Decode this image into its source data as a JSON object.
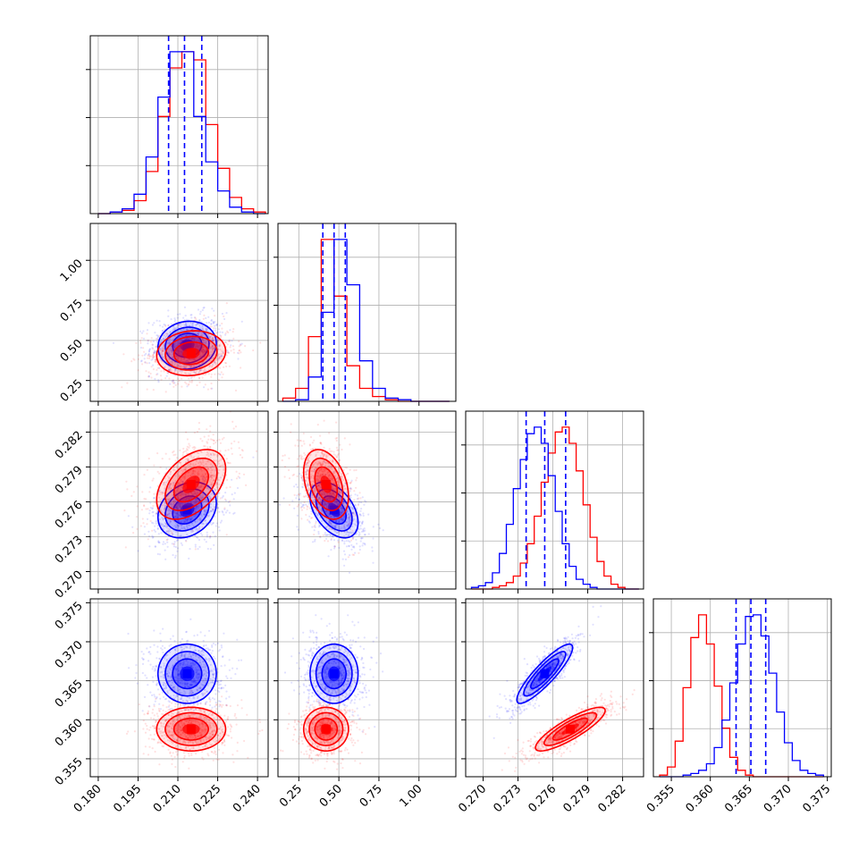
{
  "chart_data": {
    "type": "corner",
    "colors": {
      "series_a": "#0000ff",
      "series_b": "#ff0000",
      "quantile_line": "#0000ff"
    },
    "grid": true,
    "parameters": [
      {
        "index": 0,
        "range": [
          0.177,
          0.244
        ],
        "ticks": [
          0.18,
          0.195,
          0.21,
          0.225,
          0.24
        ],
        "tick_labels": [
          "0.180",
          "0.195",
          "0.210",
          "0.225",
          "0.240"
        ]
      },
      {
        "index": 1,
        "range": [
          0.12,
          1.23
        ],
        "ticks": [
          0.25,
          0.5,
          0.75,
          1.0
        ],
        "tick_labels": [
          "0.25",
          "0.50",
          "0.75",
          "1.00"
        ]
      },
      {
        "index": 2,
        "range": [
          0.2685,
          0.2838
        ],
        "ticks": [
          0.27,
          0.273,
          0.276,
          0.279,
          0.282
        ],
        "tick_labels": [
          "0.270",
          "0.273",
          "0.276",
          "0.279",
          "0.282"
        ]
      },
      {
        "index": 3,
        "range": [
          0.3527,
          0.3755
        ],
        "ticks": [
          0.355,
          0.36,
          0.365,
          0.37,
          0.375
        ],
        "tick_labels": [
          "0.355",
          "0.360",
          "0.365",
          "0.370",
          "0.375"
        ]
      }
    ],
    "series": [
      {
        "color": "#0000ff",
        "mean": [
          0.2135,
          0.47,
          0.2753,
          0.3659
        ],
        "sd": [
          0.0055,
          0.075,
          0.0012,
          0.0019
        ],
        "quantiles": [
          [
            0.2065,
            0.2125,
            0.219
          ],
          [
            0.4,
            0.47,
            0.54
          ],
          [
            0.2737,
            0.2753,
            0.2771
          ],
          [
            0.3633,
            0.3652,
            0.3671
          ]
        ],
        "corr": {
          "0-1": 0.08,
          "0-2": 0.25,
          "1-2": -0.45,
          "0-3": 0.0,
          "1-3": 0.0,
          "2-3": 0.88
        }
      },
      {
        "color": "#ff0000",
        "mean": [
          0.215,
          0.42,
          0.2775,
          0.3588
        ],
        "sd": [
          0.0065,
          0.07,
          0.0015,
          0.0014
        ],
        "corr": {
          "0-1": 0.1,
          "0-2": 0.45,
          "1-2": -0.35,
          "0-3": 0.0,
          "1-3": 0.0,
          "2-3": 0.85
        }
      }
    ],
    "diagonal_hist": {
      "p0": {
        "edges": [
          0.18,
          0.1845,
          0.189,
          0.1935,
          0.198,
          0.2025,
          0.207,
          0.2115,
          0.216,
          0.2205,
          0.225,
          0.2295,
          0.234,
          0.2385,
          0.243
        ],
        "blue": [
          0,
          1,
          3,
          12,
          35,
          72,
          100,
          100,
          60,
          32,
          14,
          4,
          1,
          0
        ],
        "red": [
          0,
          1,
          2,
          8,
          26,
          60,
          90,
          100,
          95,
          55,
          28,
          10,
          3,
          1
        ]
      },
      "p1": {
        "edges": [
          0.15,
          0.23,
          0.31,
          0.39,
          0.47,
          0.55,
          0.63,
          0.71,
          0.79,
          0.87,
          0.95,
          1.03,
          1.11,
          1.19
        ],
        "blue": [
          0,
          1,
          15,
          55,
          100,
          72,
          25,
          8,
          2,
          1,
          0,
          0,
          0
        ],
        "red": [
          2,
          8,
          40,
          100,
          65,
          22,
          8,
          3,
          1,
          0,
          0,
          0,
          0
        ]
      },
      "p2": {
        "edges": [
          0.269,
          0.2696,
          0.2702,
          0.2708,
          0.2714,
          0.272,
          0.2726,
          0.2732,
          0.2738,
          0.2744,
          0.275,
          0.2756,
          0.2762,
          0.2768,
          0.2774,
          0.278,
          0.2786,
          0.2792,
          0.2798,
          0.2804,
          0.281,
          0.2816,
          0.2822,
          0.2828,
          0.2834
        ],
        "blue": [
          1,
          2,
          4,
          10,
          22,
          40,
          62,
          80,
          96,
          100,
          90,
          70,
          48,
          28,
          14,
          6,
          3,
          1,
          0,
          0,
          0,
          0,
          0,
          0
        ],
        "red": [
          0,
          0,
          0,
          1,
          2,
          4,
          8,
          16,
          28,
          45,
          66,
          84,
          97,
          100,
          90,
          73,
          52,
          32,
          17,
          8,
          3,
          1,
          0,
          0
        ]
      },
      "p3": {
        "edges": [
          0.3535,
          0.3545,
          0.3555,
          0.3565,
          0.3575,
          0.3585,
          0.3595,
          0.3605,
          0.3615,
          0.3625,
          0.3635,
          0.3645,
          0.3655,
          0.3665,
          0.3675,
          0.3685,
          0.3695,
          0.3705,
          0.3715,
          0.3725,
          0.3735,
          0.3745
        ],
        "blue": [
          0,
          0,
          0,
          1,
          2,
          4,
          8,
          18,
          35,
          58,
          82,
          99,
          100,
          87,
          64,
          40,
          21,
          10,
          4,
          2,
          1
        ],
        "red": [
          1,
          6,
          22,
          55,
          86,
          100,
          82,
          56,
          30,
          12,
          4,
          1,
          0,
          0,
          0,
          0,
          0,
          0,
          0,
          0,
          0
        ]
      }
    }
  }
}
